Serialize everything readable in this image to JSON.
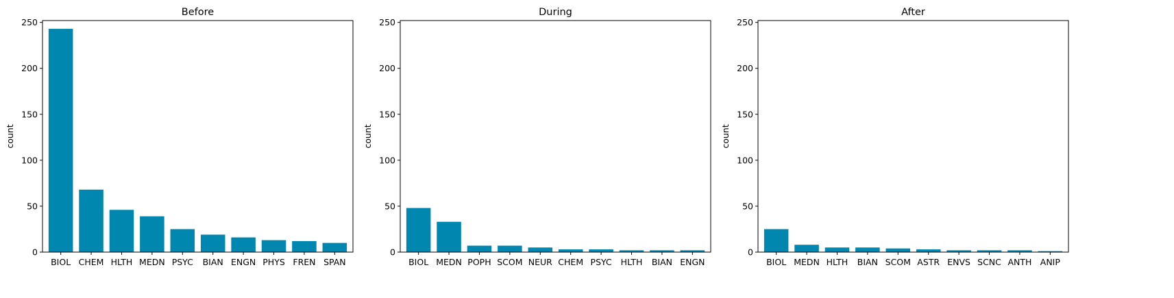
{
  "chart_data": [
    {
      "type": "bar",
      "title": "Before",
      "xlabel": "",
      "ylabel": "count",
      "ylim": [
        0,
        252
      ],
      "yticks": [
        0,
        50,
        100,
        150,
        200,
        250
      ],
      "color": "#0087B0",
      "grid": false,
      "categories": [
        "BIOL",
        "CHEM",
        "HLTH",
        "MEDN",
        "PSYC",
        "BIAN",
        "ENGN",
        "PHYS",
        "FREN",
        "SPAN"
      ],
      "values": [
        243,
        68,
        46,
        39,
        25,
        19,
        16,
        13,
        12,
        10
      ]
    },
    {
      "type": "bar",
      "title": "During",
      "xlabel": "",
      "ylabel": "count",
      "ylim": [
        0,
        252
      ],
      "yticks": [
        0,
        50,
        100,
        150,
        200,
        250
      ],
      "color": "#0087B0",
      "grid": false,
      "categories": [
        "BIOL",
        "MEDN",
        "POPH",
        "SCOM",
        "NEUR",
        "CHEM",
        "PSYC",
        "HLTH",
        "BIAN",
        "ENGN"
      ],
      "values": [
        48,
        33,
        7,
        7,
        5,
        3,
        3,
        2,
        2,
        2
      ]
    },
    {
      "type": "bar",
      "title": "After",
      "xlabel": "",
      "ylabel": "count",
      "ylim": [
        0,
        252
      ],
      "yticks": [
        0,
        50,
        100,
        150,
        200,
        250
      ],
      "color": "#0087B0",
      "grid": false,
      "categories": [
        "BIOL",
        "MEDN",
        "HLTH",
        "BIAN",
        "SCOM",
        "ASTR",
        "ENVS",
        "SCNC",
        "ANTH",
        "ANIP"
      ],
      "values": [
        25,
        8,
        5,
        5,
        4,
        3,
        2,
        2,
        2,
        1
      ]
    }
  ]
}
